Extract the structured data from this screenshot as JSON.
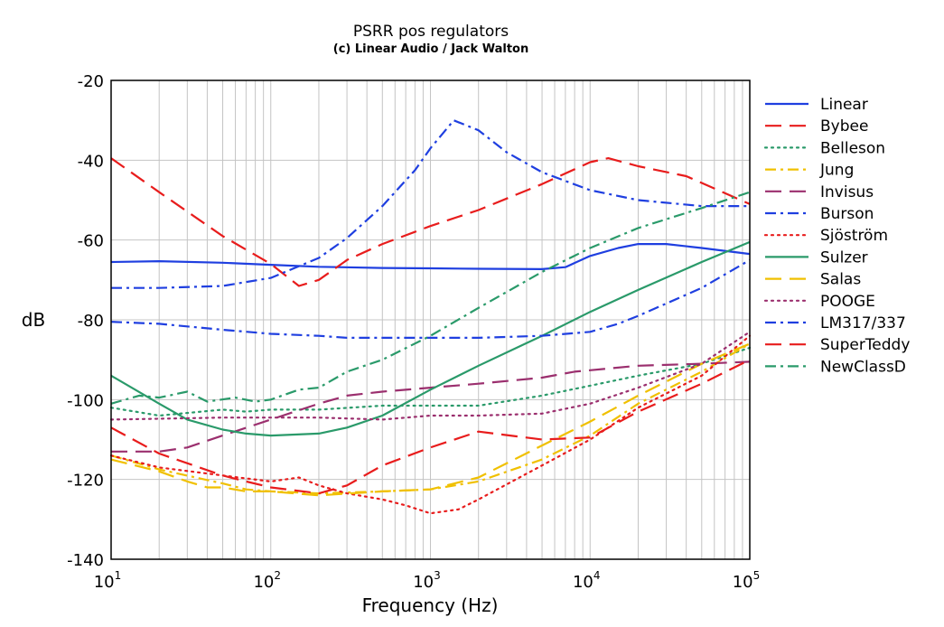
{
  "chart_data": {
    "type": "line",
    "title": "PSRR pos regulators",
    "subtitle": "(c) Linear Audio / Jack Walton",
    "xlabel": "Frequency (Hz)",
    "ylabel": "dB",
    "xscale": "log",
    "xlim": [
      10,
      100000
    ],
    "ylim": [
      -140,
      -20
    ],
    "x_ticks": [
      {
        "base": "10",
        "exp": "1"
      },
      {
        "base": "10",
        "exp": "2"
      },
      {
        "base": "10",
        "exp": "3"
      },
      {
        "base": "10",
        "exp": "4"
      },
      {
        "base": "10",
        "exp": "5"
      }
    ],
    "y_ticks": [
      "-20",
      "-40",
      "-60",
      "-80",
      "-100",
      "-120",
      "-140"
    ],
    "grid": true,
    "legend_position": "right",
    "series": [
      {
        "name": "Linear",
        "color": "#1f3fe0",
        "dash": "solid",
        "points": [
          [
            10,
            -65.5
          ],
          [
            20,
            -65.3
          ],
          [
            50,
            -65.7
          ],
          [
            100,
            -66.2
          ],
          [
            200,
            -66.7
          ],
          [
            500,
            -67
          ],
          [
            1000,
            -67.1
          ],
          [
            2000,
            -67.2
          ],
          [
            5000,
            -67.3
          ],
          [
            7000,
            -66.8
          ],
          [
            10000,
            -64
          ],
          [
            15000,
            -62
          ],
          [
            20000,
            -61
          ],
          [
            30000,
            -61
          ],
          [
            50000,
            -62
          ],
          [
            100000,
            -63.5
          ]
        ]
      },
      {
        "name": "Bybee",
        "color": "#e81c1c",
        "dash": "long",
        "points": [
          [
            10,
            -39.5
          ],
          [
            20,
            -48
          ],
          [
            50,
            -59
          ],
          [
            100,
            -66
          ],
          [
            150,
            -71.5
          ],
          [
            200,
            -70
          ],
          [
            300,
            -65
          ],
          [
            500,
            -61
          ],
          [
            1000,
            -56.5
          ],
          [
            2000,
            -52.5
          ],
          [
            5000,
            -46
          ],
          [
            10000,
            -40.5
          ],
          [
            13000,
            -39.5
          ],
          [
            20000,
            -41.5
          ],
          [
            40000,
            -44
          ],
          [
            100000,
            -51
          ]
        ]
      },
      {
        "name": "Belleson",
        "color": "#2a9a6a",
        "dash": "dot",
        "points": [
          [
            10,
            -102
          ],
          [
            20,
            -104
          ],
          [
            50,
            -102.5
          ],
          [
            70,
            -103
          ],
          [
            100,
            -102.5
          ],
          [
            200,
            -102.5
          ],
          [
            500,
            -101.5
          ],
          [
            1000,
            -101.5
          ],
          [
            2000,
            -101.5
          ],
          [
            5000,
            -99
          ],
          [
            10000,
            -96.5
          ],
          [
            20000,
            -94
          ],
          [
            50000,
            -91
          ],
          [
            100000,
            -87
          ]
        ]
      },
      {
        "name": "Jung",
        "color": "#f0c000",
        "dash": "dashdot",
        "points": [
          [
            10,
            -114
          ],
          [
            20,
            -117.5
          ],
          [
            50,
            -121
          ],
          [
            70,
            -122.5
          ],
          [
            100,
            -123
          ],
          [
            200,
            -123.5
          ],
          [
            500,
            -123
          ],
          [
            1000,
            -122.5
          ],
          [
            2000,
            -120.5
          ],
          [
            5000,
            -115
          ],
          [
            10000,
            -109
          ],
          [
            20000,
            -101
          ],
          [
            50000,
            -93
          ],
          [
            100000,
            -86
          ]
        ]
      },
      {
        "name": "Invisus",
        "color": "#9b2f6e",
        "dash": "long",
        "points": [
          [
            10,
            -113
          ],
          [
            20,
            -113
          ],
          [
            30,
            -112
          ],
          [
            50,
            -109
          ],
          [
            100,
            -105
          ],
          [
            200,
            -101
          ],
          [
            300,
            -99
          ],
          [
            500,
            -98
          ],
          [
            1000,
            -97
          ],
          [
            2000,
            -96
          ],
          [
            5000,
            -94.5
          ],
          [
            8000,
            -93
          ],
          [
            20000,
            -91.5
          ],
          [
            50000,
            -91
          ],
          [
            100000,
            -90.5
          ]
        ]
      },
      {
        "name": "Burson",
        "color": "#1f3fe0",
        "dash": "dashdot",
        "points": [
          [
            10,
            -72
          ],
          [
            20,
            -72
          ],
          [
            50,
            -71.5
          ],
          [
            100,
            -69.5
          ],
          [
            200,
            -64.5
          ],
          [
            300,
            -59.5
          ],
          [
            500,
            -51.5
          ],
          [
            800,
            -42.5
          ],
          [
            1000,
            -37
          ],
          [
            1400,
            -30
          ],
          [
            2000,
            -32.5
          ],
          [
            3000,
            -38
          ],
          [
            5000,
            -43
          ],
          [
            10000,
            -47.5
          ],
          [
            20000,
            -50
          ],
          [
            50000,
            -51.5
          ],
          [
            100000,
            -51.5
          ]
        ]
      },
      {
        "name": "Sjöström",
        "color": "#e81c1c",
        "dash": "dot",
        "points": [
          [
            10,
            -114
          ],
          [
            20,
            -117
          ],
          [
            50,
            -119
          ],
          [
            100,
            -120.5
          ],
          [
            150,
            -119.5
          ],
          [
            200,
            -121.5
          ],
          [
            300,
            -123.5
          ],
          [
            500,
            -125
          ],
          [
            700,
            -126.5
          ],
          [
            1000,
            -128.5
          ],
          [
            1500,
            -127.5
          ],
          [
            2000,
            -125
          ],
          [
            5000,
            -116.5
          ],
          [
            10000,
            -110
          ],
          [
            20000,
            -102
          ],
          [
            50000,
            -94
          ],
          [
            100000,
            -84
          ]
        ]
      },
      {
        "name": "Sulzer",
        "color": "#2a9a6a",
        "dash": "solid",
        "points": [
          [
            10,
            -94
          ],
          [
            20,
            -101
          ],
          [
            30,
            -105
          ],
          [
            50,
            -107.5
          ],
          [
            70,
            -108.5
          ],
          [
            100,
            -109
          ],
          [
            200,
            -108.5
          ],
          [
            300,
            -107
          ],
          [
            500,
            -104
          ],
          [
            1000,
            -97.5
          ],
          [
            2000,
            -91.5
          ],
          [
            5000,
            -84
          ],
          [
            10000,
            -78
          ],
          [
            20000,
            -72.5
          ],
          [
            50000,
            -65.5
          ],
          [
            100000,
            -60.5
          ]
        ]
      },
      {
        "name": "Salas",
        "color": "#f0c000",
        "dash": "long",
        "points": [
          [
            10,
            -115
          ],
          [
            20,
            -118
          ],
          [
            30,
            -120.5
          ],
          [
            40,
            -122
          ],
          [
            50,
            -122
          ],
          [
            70,
            -123
          ],
          [
            100,
            -123
          ],
          [
            200,
            -124
          ],
          [
            500,
            -123
          ],
          [
            1000,
            -122.5
          ],
          [
            2000,
            -119.5
          ],
          [
            5000,
            -111.5
          ],
          [
            10000,
            -105.5
          ],
          [
            20000,
            -99
          ],
          [
            50000,
            -91
          ],
          [
            100000,
            -86
          ]
        ]
      },
      {
        "name": "POOGE",
        "color": "#9b2f6e",
        "dash": "dot",
        "points": [
          [
            10,
            -105
          ],
          [
            20,
            -104.8
          ],
          [
            50,
            -104.5
          ],
          [
            100,
            -104.5
          ],
          [
            200,
            -104.5
          ],
          [
            500,
            -105
          ],
          [
            1000,
            -104
          ],
          [
            2000,
            -104
          ],
          [
            5000,
            -103.5
          ],
          [
            10000,
            -101
          ],
          [
            20000,
            -97
          ],
          [
            50000,
            -91
          ],
          [
            100000,
            -83
          ]
        ]
      },
      {
        "name": "LM317/337",
        "color": "#1f3fe0",
        "dash": "dashdot",
        "points": [
          [
            10,
            -80.5
          ],
          [
            20,
            -81
          ],
          [
            50,
            -82.5
          ],
          [
            100,
            -83.5
          ],
          [
            200,
            -84
          ],
          [
            300,
            -84.5
          ],
          [
            500,
            -84.5
          ],
          [
            1000,
            -84.5
          ],
          [
            2000,
            -84.5
          ],
          [
            5000,
            -84
          ],
          [
            10000,
            -83
          ],
          [
            15000,
            -81
          ],
          [
            20000,
            -79
          ],
          [
            50000,
            -72
          ],
          [
            100000,
            -65
          ]
        ]
      },
      {
        "name": "SuperTeddy",
        "color": "#e81c1c",
        "dash": "long",
        "points": [
          [
            10,
            -107
          ],
          [
            20,
            -113.5
          ],
          [
            50,
            -119
          ],
          [
            70,
            -120.5
          ],
          [
            100,
            -122
          ],
          [
            200,
            -123.5
          ],
          [
            300,
            -121.5
          ],
          [
            500,
            -116.5
          ],
          [
            1000,
            -112
          ],
          [
            2000,
            -108
          ],
          [
            5000,
            -110
          ],
          [
            10000,
            -109.5
          ],
          [
            20000,
            -103
          ],
          [
            50000,
            -96
          ],
          [
            100000,
            -90
          ]
        ]
      },
      {
        "name": "NewClassD",
        "color": "#2a9a6a",
        "dash": "dashdot",
        "points": [
          [
            10,
            -101
          ],
          [
            15,
            -99
          ],
          [
            20,
            -99.5
          ],
          [
            30,
            -98
          ],
          [
            40,
            -100.5
          ],
          [
            60,
            -99.5
          ],
          [
            80,
            -100.5
          ],
          [
            100,
            -100
          ],
          [
            150,
            -97.5
          ],
          [
            200,
            -97
          ],
          [
            300,
            -93
          ],
          [
            500,
            -90
          ],
          [
            1000,
            -84
          ],
          [
            2000,
            -77
          ],
          [
            5000,
            -68
          ],
          [
            10000,
            -62
          ],
          [
            20000,
            -57
          ],
          [
            50000,
            -52
          ],
          [
            100000,
            -48
          ]
        ]
      }
    ]
  }
}
